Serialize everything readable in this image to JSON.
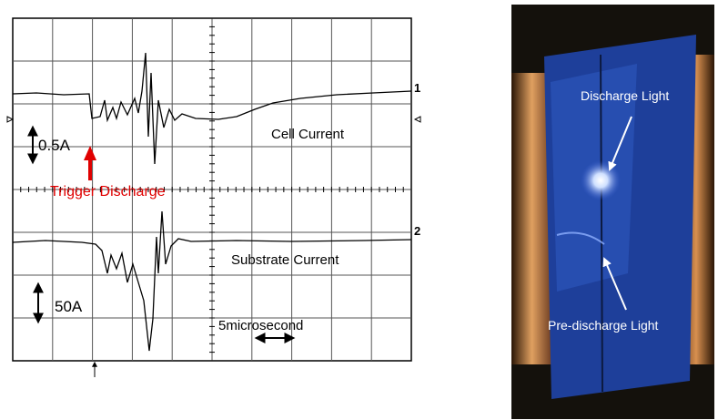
{
  "scope": {
    "channel_1": "1",
    "channel_2": "2",
    "cell_scale": "0.5A",
    "cell_label": "Cell Current",
    "trigger_label": "Trigger Discharge",
    "substrate_label": "Substrate Current",
    "substrate_scale": "50A",
    "time_scale": "5microsecond"
  },
  "photo": {
    "discharge_label": "Discharge Light",
    "pre_discharge_label": "Pre-discharge Light"
  }
}
